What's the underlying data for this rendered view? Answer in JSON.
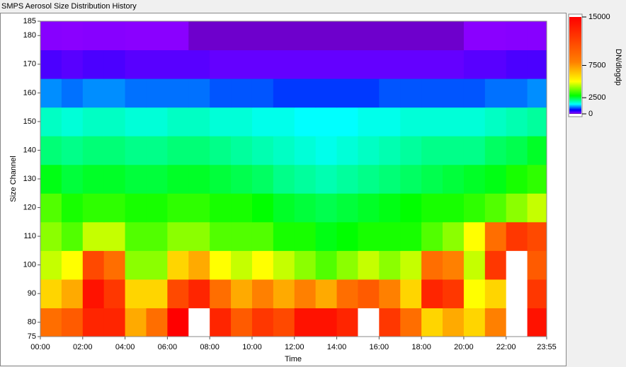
{
  "chart_data": {
    "type": "heatmap",
    "title": "SMPS Aerosol Size Distribution History",
    "xlabel": "Time",
    "ylabel": "Size Channel",
    "colorbar_label": "DN/dlogdp",
    "xlim": [
      0,
      23.9167
    ],
    "ylim": [
      75,
      185
    ],
    "xticks": [
      {
        "value": 0,
        "label": "00:00"
      },
      {
        "value": 2,
        "label": "02:00"
      },
      {
        "value": 4,
        "label": "04:00"
      },
      {
        "value": 6,
        "label": "06:00"
      },
      {
        "value": 8,
        "label": "08:00"
      },
      {
        "value": 10,
        "label": "10:00"
      },
      {
        "value": 12,
        "label": "12:00"
      },
      {
        "value": 14,
        "label": "14:00"
      },
      {
        "value": 16,
        "label": "16:00"
      },
      {
        "value": 18,
        "label": "18:00"
      },
      {
        "value": 20,
        "label": "20:00"
      },
      {
        "value": 22,
        "label": "22:00"
      },
      {
        "value": 23.9167,
        "label": "23:55"
      }
    ],
    "yticks": [
      75,
      80,
      90,
      100,
      110,
      120,
      130,
      140,
      150,
      160,
      170,
      180,
      185
    ],
    "x_bins": [
      0,
      1,
      2,
      3,
      4,
      5,
      6,
      7,
      8,
      9,
      10,
      11,
      12,
      13,
      14,
      15,
      16,
      17,
      18,
      19,
      20,
      21,
      22,
      23,
      23.9167
    ],
    "y_bins": [
      75,
      85,
      95,
      105,
      115,
      125,
      135,
      145,
      155,
      165,
      175,
      185
    ],
    "values": [
      [
        9000,
        10000,
        13000,
        13000,
        7000,
        9000,
        15000,
        16000,
        13000,
        10000,
        12000,
        11000,
        14000,
        14000,
        13000,
        16000,
        12000,
        9000,
        6000,
        7000,
        6000,
        8000,
        16000,
        14000
      ],
      [
        6000,
        7000,
        14000,
        12000,
        6000,
        6000,
        11000,
        13000,
        9000,
        7000,
        8000,
        7000,
        8000,
        7000,
        9000,
        10000,
        8000,
        6000,
        13000,
        12000,
        5000,
        6000,
        16000,
        12000
      ],
      [
        4500,
        5000,
        11000,
        9000,
        4000,
        4000,
        6000,
        7000,
        5000,
        4500,
        5000,
        4500,
        4000,
        3500,
        4000,
        4500,
        4000,
        4500,
        9000,
        8000,
        4500,
        12000,
        16000,
        10000
      ],
      [
        4000,
        3500,
        4500,
        4500,
        3500,
        3500,
        4000,
        4000,
        3500,
        3500,
        3500,
        3000,
        3000,
        2700,
        2800,
        3000,
        3000,
        3000,
        3500,
        4000,
        5000,
        9000,
        12000,
        11000
      ],
      [
        3500,
        3000,
        3200,
        3200,
        3000,
        3000,
        3200,
        3200,
        3000,
        3000,
        2800,
        2600,
        2500,
        2400,
        2500,
        2600,
        2700,
        2800,
        3000,
        3000,
        3200,
        3500,
        4000,
        4500
      ],
      [
        2700,
        2500,
        2600,
        2600,
        2500,
        2500,
        2600,
        2600,
        2500,
        2400,
        2300,
        2100,
        2000,
        1900,
        2000,
        2100,
        2200,
        2300,
        2400,
        2500,
        2600,
        2700,
        3000,
        3200
      ],
      [
        2200,
        2100,
        2200,
        2200,
        2100,
        2100,
        2200,
        2200,
        2100,
        2000,
        1900,
        1800,
        1700,
        1600,
        1700,
        1800,
        1900,
        2000,
        2100,
        2100,
        2100,
        2300,
        2400,
        2600
      ],
      [
        1800,
        1700,
        1800,
        1800,
        1700,
        1700,
        1800,
        1800,
        1700,
        1700,
        1600,
        1600,
        1500,
        1500,
        1500,
        1600,
        1600,
        1700,
        1700,
        1700,
        1700,
        1800,
        1900,
        2000
      ],
      [
        1100,
        1000,
        1100,
        1100,
        1000,
        1000,
        1000,
        1000,
        900,
        900,
        900,
        800,
        800,
        800,
        800,
        800,
        900,
        900,
        900,
        900,
        900,
        1000,
        1000,
        1100
      ],
      [
        300,
        250,
        300,
        300,
        250,
        250,
        250,
        250,
        200,
        200,
        200,
        200,
        200,
        200,
        200,
        200,
        200,
        200,
        200,
        200,
        250,
        250,
        300,
        300
      ],
      [
        60,
        50,
        60,
        60,
        50,
        50,
        50,
        40,
        40,
        40,
        40,
        40,
        40,
        40,
        40,
        40,
        40,
        40,
        40,
        40,
        50,
        50,
        60,
        60
      ]
    ],
    "zlim": [
      0,
      15000
    ],
    "zticks": [
      0,
      2500,
      7500,
      15000
    ],
    "colorscale": [
      [
        0,
        "#000000"
      ],
      [
        50,
        "#8a00ff"
      ],
      [
        600,
        "#0000ff"
      ],
      [
        1500,
        "#00ffff"
      ],
      [
        2800,
        "#00ff00"
      ],
      [
        5000,
        "#ffff00"
      ],
      [
        8000,
        "#ff8000"
      ],
      [
        15000,
        "#ff0000"
      ]
    ],
    "above_color": "#ffffff"
  }
}
